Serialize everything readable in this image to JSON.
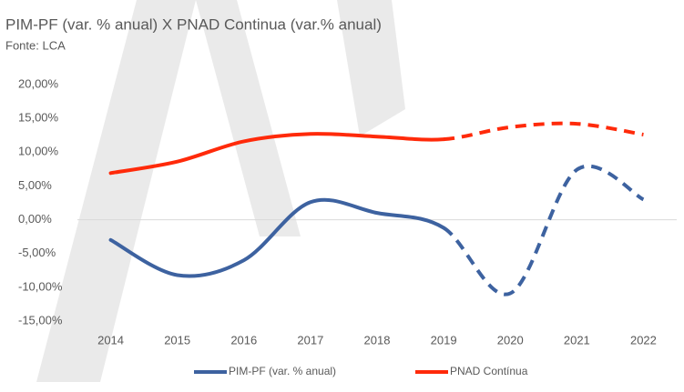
{
  "chart_data": {
    "type": "line",
    "title": "PIM-PF (var. % anual) X PNAD Continua (var.% anual)",
    "subtitle": "Fonte: LCA",
    "categories": [
      "2014",
      "2015",
      "2016",
      "2017",
      "2018",
      "2019",
      "2020",
      "2021",
      "2022"
    ],
    "series": [
      {
        "name": "PIM-PF (var. % anual)",
        "color": "#3d62a0",
        "values": [
          -3,
          -8.2,
          -6,
          2.6,
          1,
          -1.2,
          -10.9,
          7.4,
          3
        ],
        "dash_from": "2019"
      },
      {
        "name": "PNAD Contínua",
        "color": "#ff2a0a",
        "values": [
          6.9,
          8.6,
          11.6,
          12.7,
          12.3,
          11.9,
          13.7,
          14.2,
          12.6
        ],
        "dash_from": "2019"
      }
    ],
    "ylim": [
      -15,
      20
    ],
    "yticks": [
      {
        "value": -15,
        "label": "-15,00%"
      },
      {
        "value": -10,
        "label": "-10,00%"
      },
      {
        "value": -5,
        "label": "-5,00%"
      },
      {
        "value": 0,
        "label": "0,00%"
      },
      {
        "value": 5,
        "label": "5,00%"
      },
      {
        "value": 10,
        "label": "10,00%"
      },
      {
        "value": 15,
        "label": "15,00%"
      },
      {
        "value": 20,
        "label": "20,00%"
      }
    ],
    "grid": false,
    "legend": "bottom"
  }
}
